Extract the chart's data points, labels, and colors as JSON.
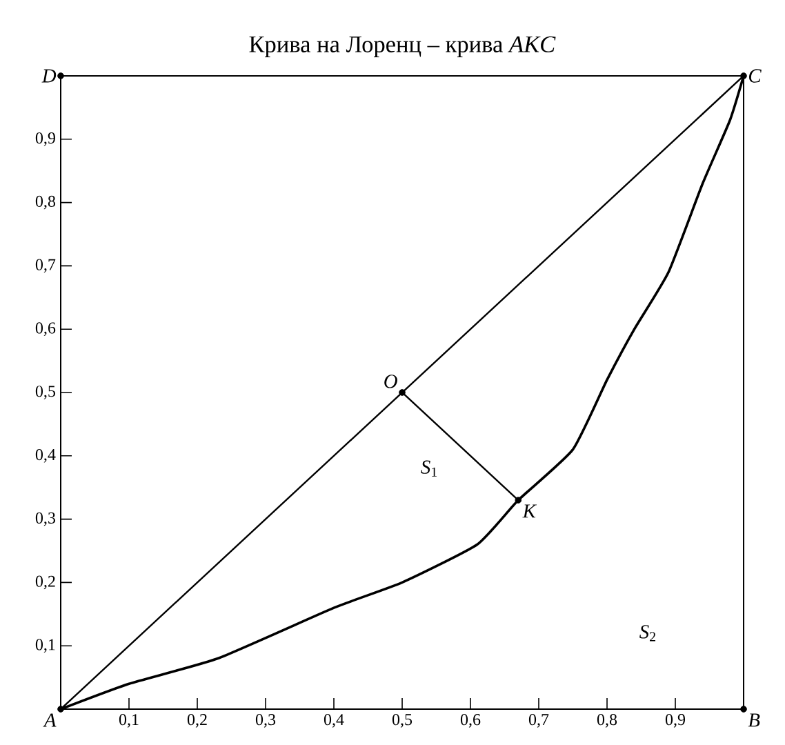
{
  "chart_data": {
    "type": "line",
    "title": "Крива на Лоренц –  крива *AKC*",
    "xlim": [
      0,
      1
    ],
    "ylim": [
      0,
      1
    ],
    "xticks": [
      {
        "value": 0.1,
        "label": "0,1"
      },
      {
        "value": 0.2,
        "label": "0,2"
      },
      {
        "value": 0.3,
        "label": "0,3"
      },
      {
        "value": 0.4,
        "label": "0,4"
      },
      {
        "value": 0.5,
        "label": "0,5"
      },
      {
        "value": 0.6,
        "label": "0,6"
      },
      {
        "value": 0.7,
        "label": "0,7"
      },
      {
        "value": 0.8,
        "label": "0,8"
      },
      {
        "value": 0.9,
        "label": "0,9"
      }
    ],
    "yticks": [
      {
        "value": 0.1,
        "label": "0,1"
      },
      {
        "value": 0.2,
        "label": "0,2"
      },
      {
        "value": 0.3,
        "label": "0,3"
      },
      {
        "value": 0.4,
        "label": "0,4"
      },
      {
        "value": 0.5,
        "label": "0,5"
      },
      {
        "value": 0.6,
        "label": "0,6"
      },
      {
        "value": 0.7,
        "label": "0,7"
      },
      {
        "value": 0.8,
        "label": "0,8"
      },
      {
        "value": 0.9,
        "label": "0,9"
      }
    ],
    "grid": false,
    "series": [
      {
        "color": "#000000",
        "x": [
          0,
          1
        ],
        "values": [
          0,
          1
        ],
        "marker": "none"
      },
      {
        "color": "#000000",
        "x": [
          0.5,
          0.67
        ],
        "values": [
          0.5,
          0.33
        ],
        "marker": "none"
      },
      {
        "color": "#000000",
        "x": [
          0,
          0.1,
          0.23,
          0.4,
          0.5,
          0.61,
          0.67,
          0.75,
          0.8,
          0.84,
          0.89,
          0.94,
          0.98,
          1
        ],
        "values": [
          0,
          0.04,
          0.08,
          0.16,
          0.2,
          0.26,
          0.33,
          0.41,
          0.52,
          0.6,
          0.69,
          0.83,
          0.93,
          1
        ],
        "marker": "none"
      },
      {
        "type": "scatter",
        "color": "#000000",
        "x": [
          0,
          1,
          1,
          0,
          0.5,
          0.67
        ],
        "values": [
          0,
          0,
          1,
          1,
          0.5,
          0.33
        ],
        "marker": "circle"
      }
    ],
    "annotations": [
      {
        "text": "*A*",
        "x": 0,
        "y": 0
      },
      {
        "text": "*B*",
        "x": 1,
        "y": 0
      },
      {
        "text": "*C*",
        "x": 1,
        "y": 1
      },
      {
        "text": "*D*",
        "x": 0,
        "y": 1
      },
      {
        "text": "*O*",
        "x": 0.5,
        "y": 0.5
      },
      {
        "text": "*K*",
        "x": 0.67,
        "y": 0.33
      },
      "*S*$_{1}$",
      "*S*$_{2}$"
    ]
  }
}
